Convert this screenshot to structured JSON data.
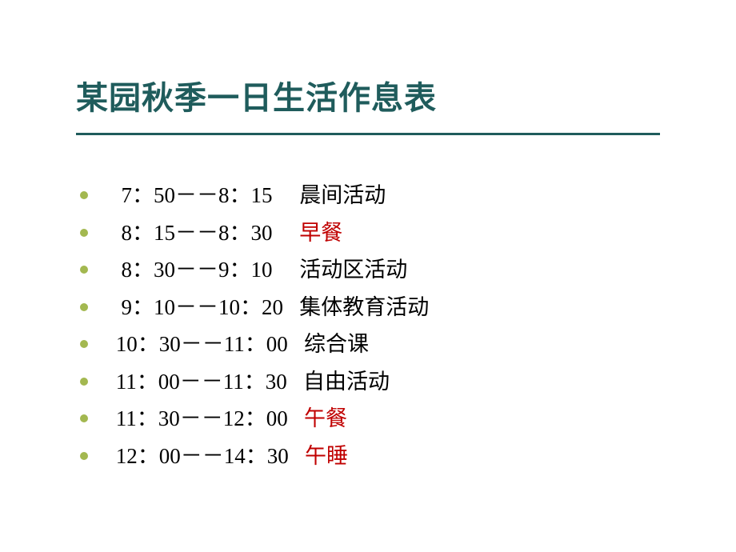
{
  "slide": {
    "title": "某园秋季一日生活作息表",
    "title_color": "#1f5c5c",
    "underline_color": "#1f5c5c",
    "bullet_color": "#a3b850",
    "background_color": "#ffffff",
    "text_color": "#000000",
    "highlight_color": "#c00000",
    "title_fontsize": 40,
    "body_fontsize": 27,
    "items": [
      {
        "time": "  7：50－－8：15     ",
        "activity": "晨间活动",
        "highlighted": false
      },
      {
        "time": "  8：15－－8：30     ",
        "activity": "早餐",
        "highlighted": true
      },
      {
        "time": "  8：30－－9：10     ",
        "activity": "活动区活动",
        "highlighted": false
      },
      {
        "time": "  9：10－－10：20   ",
        "activity": "集体教育活动",
        "highlighted": false
      },
      {
        "time": " 10：30－－11：00   ",
        "activity": "综合课",
        "highlighted": false
      },
      {
        "time": " 11：00－－11：30   ",
        "activity": "自由活动",
        "highlighted": false
      },
      {
        "time": " 11：30－－12：00   ",
        "activity": "午餐",
        "highlighted": true
      },
      {
        "time": " 12：00－－14：30   ",
        "activity": "午睡",
        "highlighted": true
      }
    ]
  }
}
